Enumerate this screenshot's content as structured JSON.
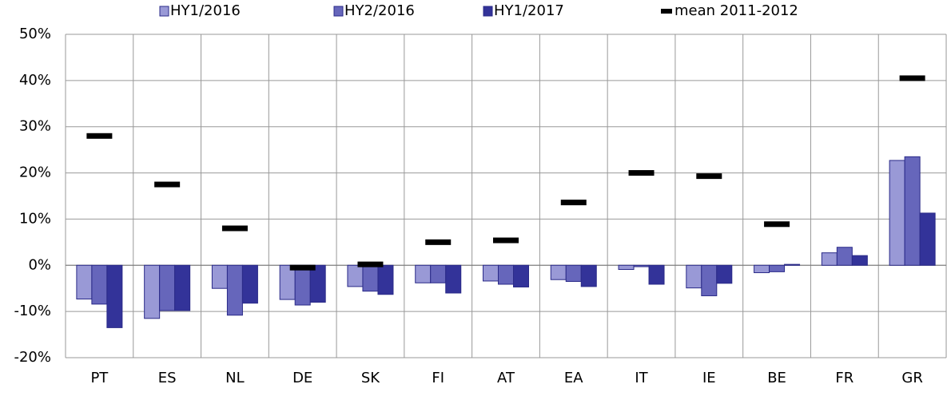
{
  "chart_data": {
    "type": "bar",
    "categories": [
      "PT",
      "ES",
      "NL",
      "DE",
      "SK",
      "FI",
      "AT",
      "EA",
      "IT",
      "IE",
      "BE",
      "FR",
      "GR"
    ],
    "series": [
      {
        "name": "HY1/2016",
        "color": "#9999d6",
        "values": [
          -7.3,
          -11.5,
          -5,
          -7.4,
          -4.6,
          -3.8,
          -3.4,
          -3.1,
          -0.9,
          -4.9,
          -1.6,
          2.7,
          22.7
        ]
      },
      {
        "name": "HY2/2016",
        "color": "#6666bb",
        "values": [
          -8.4,
          -9.8,
          -10.8,
          -8.6,
          -5.6,
          -3.8,
          -4.1,
          -3.5,
          -0.3,
          -6.6,
          -1.4,
          3.9,
          23.5
        ]
      },
      {
        "name": "HY1/2017",
        "color": "#333399",
        "values": [
          -13.5,
          -9.8,
          -8.2,
          -8,
          -6.3,
          -6,
          -4.7,
          -4.6,
          -4.1,
          -3.9,
          0.2,
          2.1,
          11.3
        ]
      },
      {
        "name": "mean 2011-2012",
        "color": "#000000",
        "mark": "dash",
        "values": [
          28,
          17.5,
          8,
          -0.5,
          0.2,
          5,
          5.4,
          13.6,
          20,
          19.3,
          8.9,
          null,
          40.5
        ]
      }
    ],
    "ylim": [
      -20,
      50
    ],
    "yticks": [
      {
        "value": -20,
        "label": "-20%"
      },
      {
        "value": -10,
        "label": "-10%"
      },
      {
        "value": 0,
        "label": "0%"
      },
      {
        "value": 10,
        "label": "10%"
      },
      {
        "value": 20,
        "label": "20%"
      },
      {
        "value": 30,
        "label": "30%"
      },
      {
        "value": 40,
        "label": "40%"
      },
      {
        "value": 50,
        "label": "50%"
      }
    ],
    "grid": true,
    "legend": "top"
  }
}
